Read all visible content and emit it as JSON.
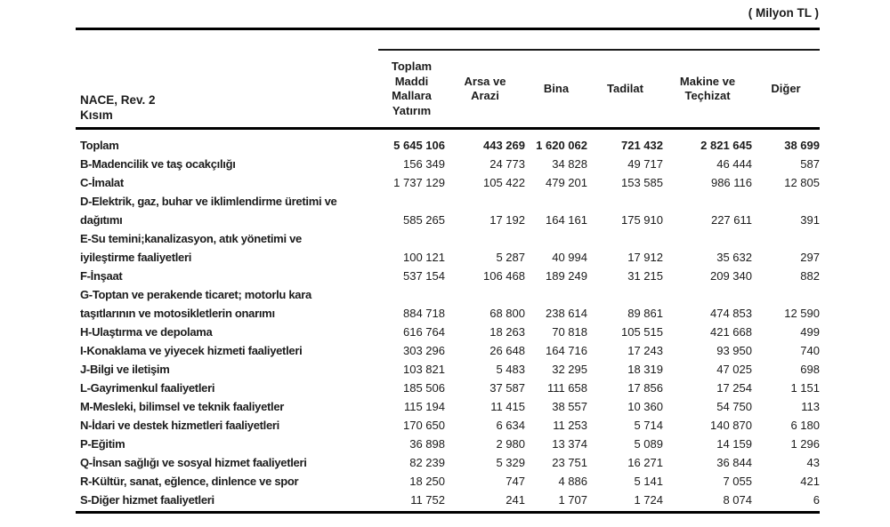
{
  "unit_label": "( Milyon TL )",
  "table": {
    "row_header_line1": "NACE, Rev. 2",
    "row_header_line2": "Kısım",
    "columns": [
      {
        "name": "toplam-maddi-mallara-yatirim",
        "lines": [
          "Toplam",
          "Maddi",
          "Mallara",
          "Yatırım"
        ]
      },
      {
        "name": "arsa-ve-arazi",
        "lines": [
          "Arsa ve",
          "Arazi"
        ]
      },
      {
        "name": "bina",
        "lines": [
          "Bina"
        ]
      },
      {
        "name": "tadilat",
        "lines": [
          "Tadilat"
        ]
      },
      {
        "name": "makine-ve-techizat",
        "lines": [
          "Makine ve",
          "Teçhizat"
        ]
      },
      {
        "name": "diger",
        "lines": [
          "Diğer"
        ]
      }
    ],
    "rows": [
      {
        "label_lines": [
          "Toplam"
        ],
        "bold": true,
        "values": [
          "5 645 106",
          "443 269",
          "1 620 062",
          "721 432",
          "2 821 645",
          "38 699"
        ]
      },
      {
        "label_lines": [
          "B-Madencilik ve taş ocakçılığı"
        ],
        "values": [
          "156 349",
          "24 773",
          "34 828",
          "49 717",
          "46 444",
          "587"
        ]
      },
      {
        "label_lines": [
          "C-İmalat"
        ],
        "values": [
          "1 737 129",
          "105 422",
          "479 201",
          "153 585",
          "986 116",
          "12 805"
        ]
      },
      {
        "label_lines": [
          "D-Elektrik, gaz, buhar ve iklimlendirme üretimi ve",
          "dağıtımı"
        ],
        "values": [
          "585 265",
          "17 192",
          "164 161",
          "175 910",
          "227 611",
          "391"
        ]
      },
      {
        "label_lines": [
          "E-Su temini;kanalizasyon, atık yönetimi ve",
          "iyileştirme faaliyetleri"
        ],
        "values": [
          "100 121",
          "5 287",
          "40 994",
          "17 912",
          "35 632",
          "297"
        ]
      },
      {
        "label_lines": [
          "F-İnşaat"
        ],
        "values": [
          "537 154",
          "106 468",
          "189 249",
          "31 215",
          "209 340",
          "882"
        ]
      },
      {
        "label_lines": [
          "G-Toptan ve perakende ticaret; motorlu kara",
          "taşıtlarının ve motosikletlerin onarımı"
        ],
        "values": [
          "884 718",
          "68 800",
          "238 614",
          "89 861",
          "474 853",
          "12 590"
        ]
      },
      {
        "label_lines": [
          "H-Ulaştırma ve depolama"
        ],
        "values": [
          "616 764",
          "18 263",
          "70 818",
          "105 515",
          "421 668",
          "499"
        ]
      },
      {
        "label_lines": [
          "I-Konaklama ve yiyecek hizmeti faaliyetleri"
        ],
        "values": [
          "303 296",
          "26 648",
          "164 716",
          "17 243",
          "93 950",
          "740"
        ]
      },
      {
        "label_lines": [
          "J-Bilgi ve iletişim"
        ],
        "values": [
          "103 821",
          "5 483",
          "32 295",
          "18 319",
          "47 025",
          "698"
        ]
      },
      {
        "label_lines": [
          "L-Gayrimenkul faaliyetleri"
        ],
        "values": [
          "185 506",
          "37 587",
          "111 658",
          "17 856",
          "17 254",
          "1 151"
        ]
      },
      {
        "label_lines": [
          "M-Mesleki, bilimsel ve teknik faaliyetler"
        ],
        "values": [
          "115 194",
          "11 415",
          "38 557",
          "10 360",
          "54 750",
          "113"
        ]
      },
      {
        "label_lines": [
          "N-İdari ve destek hizmetleri faaliyetleri"
        ],
        "values": [
          "170 650",
          "6 634",
          "11 253",
          "5 714",
          "140 870",
          "6 180"
        ]
      },
      {
        "label_lines": [
          "P-Eğitim"
        ],
        "values": [
          "36 898",
          "2 980",
          "13 374",
          "5 089",
          "14 159",
          "1 296"
        ]
      },
      {
        "label_lines": [
          "Q-İnsan sağlığı ve sosyal hizmet faaliyetleri"
        ],
        "values": [
          "82 239",
          "5 329",
          "23 751",
          "16 271",
          "36 844",
          "43"
        ]
      },
      {
        "label_lines": [
          "R-Kültür, sanat, eğlence, dinlence ve spor"
        ],
        "values": [
          "18 250",
          "747",
          "4 886",
          "5 141",
          "7 055",
          "421"
        ]
      },
      {
        "label_lines": [
          "S-Diğer hizmet faaliyetleri"
        ],
        "values": [
          "11 752",
          "241",
          "1 707",
          "1 724",
          "8 074",
          "6"
        ]
      }
    ]
  }
}
